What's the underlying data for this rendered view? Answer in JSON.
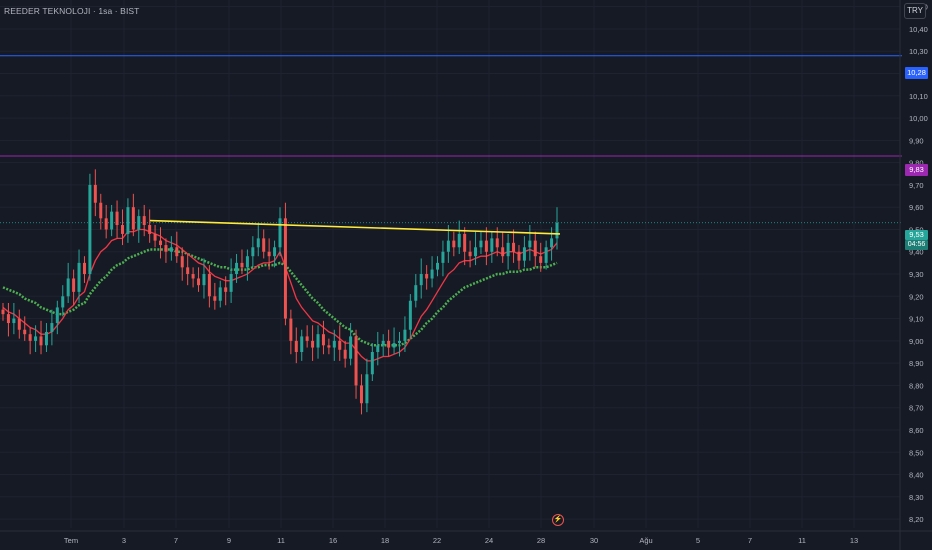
{
  "symbol": {
    "title": "REEDER TEKNOLOJI · 1sa · BIST"
  },
  "toolbar": {
    "currency_label": "TRY"
  },
  "events_icon": "lightning-icon",
  "price_tags": {
    "blue": "10,28",
    "purple": "9,83",
    "current_price": "9,53",
    "countdown": "04:56"
  },
  "colors": {
    "background": "#161a25",
    "grid": "#1f2330",
    "up_candle": "#26a69a",
    "down_candle": "#ef5350",
    "ema_fast": "#f23645",
    "ema_slow": "#4caf50",
    "trendline": "#ffeb3b",
    "horizontal_blue": "#2962ff",
    "horizontal_purple": "#9c27b0",
    "axis_text": "#b2b5be"
  },
  "chart_data": {
    "type": "candlestick",
    "y_axis": {
      "ticks": [
        "10,50",
        "10,40",
        "10,30",
        "10,20",
        "10,10",
        "10,00",
        "9,90",
        "9,80",
        "9,70",
        "9,60",
        "9,50",
        "9,40",
        "9,30",
        "9,20",
        "9,10",
        "9,00",
        "8,90",
        "8,80",
        "8,70",
        "8,60",
        "8,50",
        "8,40",
        "8,30",
        "8,20"
      ],
      "range": [
        8.16,
        10.53
      ]
    },
    "x_axis": {
      "ticks": [
        "Tem",
        "3",
        "7",
        "9",
        "11",
        "16",
        "18",
        "22",
        "24",
        "28",
        "30",
        "Ağu",
        "5",
        "7",
        "11",
        "13"
      ]
    },
    "horizontal_lines": [
      {
        "price": 10.28,
        "color": "#2962ff"
      },
      {
        "price": 9.83,
        "color": "#9c27b0"
      }
    ],
    "current_price": 9.53,
    "trendline": {
      "from_price": 9.54,
      "to_price": 9.48,
      "color": "#ffeb3b"
    },
    "closes": [
      9.12,
      9.08,
      9.1,
      9.05,
      9.03,
      9.0,
      9.02,
      8.98,
      9.04,
      9.08,
      9.15,
      9.2,
      9.28,
      9.22,
      9.35,
      9.3,
      9.7,
      9.62,
      9.55,
      9.5,
      9.58,
      9.52,
      9.48,
      9.6,
      9.5,
      9.56,
      9.52,
      9.48,
      9.45,
      9.43,
      9.4,
      9.42,
      9.38,
      9.33,
      9.3,
      9.28,
      9.25,
      9.3,
      9.2,
      9.18,
      9.24,
      9.22,
      9.3,
      9.35,
      9.33,
      9.38,
      9.42,
      9.46,
      9.4,
      9.38,
      9.42,
      9.55,
      9.1,
      9.0,
      8.95,
      9.02,
      9.0,
      8.97,
      9.03,
      8.98,
      8.97,
      9.0,
      8.96,
      8.92,
      9.02,
      8.8,
      8.72,
      8.85,
      8.95,
      8.98,
      9.0,
      8.97,
      8.99,
      9.0,
      9.05,
      9.18,
      9.25,
      9.3,
      9.28,
      9.32,
      9.35,
      9.4,
      9.45,
      9.42,
      9.48,
      9.4,
      9.38,
      9.42,
      9.45,
      9.4,
      9.46,
      9.42,
      9.38,
      9.44,
      9.4,
      9.36,
      9.42,
      9.45,
      9.38,
      9.35,
      9.42,
      9.46,
      9.53
    ],
    "ema_fast": [
      9.15,
      9.13,
      9.12,
      9.1,
      9.08,
      9.06,
      9.05,
      9.03,
      9.03,
      9.04,
      9.07,
      9.1,
      9.14,
      9.16,
      9.2,
      9.22,
      9.3,
      9.36,
      9.4,
      9.42,
      9.45,
      9.46,
      9.46,
      9.49,
      9.49,
      9.5,
      9.5,
      9.49,
      9.48,
      9.47,
      9.45,
      9.44,
      9.43,
      9.41,
      9.39,
      9.37,
      9.35,
      9.34,
      9.31,
      9.29,
      9.28,
      9.27,
      9.27,
      9.28,
      9.29,
      9.3,
      9.32,
      9.34,
      9.35,
      9.35,
      9.36,
      9.4,
      9.33,
      9.26,
      9.19,
      9.15,
      9.12,
      9.09,
      9.08,
      9.06,
      9.04,
      9.03,
      9.01,
      8.99,
      8.99,
      8.96,
      8.93,
      8.91,
      8.91,
      8.92,
      8.93,
      8.93,
      8.94,
      8.95,
      8.97,
      9.01,
      9.06,
      9.11,
      9.14,
      9.18,
      9.22,
      9.26,
      9.3,
      9.32,
      9.35,
      9.36,
      9.36,
      9.37,
      9.38,
      9.38,
      9.39,
      9.4,
      9.39,
      9.4,
      9.4,
      9.39,
      9.4,
      9.41,
      9.4,
      9.39,
      9.4,
      9.41,
      9.44
    ],
    "ema_slow": [
      9.24,
      9.23,
      9.22,
      9.21,
      9.19,
      9.18,
      9.17,
      9.15,
      9.14,
      9.13,
      9.12,
      9.12,
      9.13,
      9.14,
      9.16,
      9.17,
      9.21,
      9.24,
      9.27,
      9.29,
      9.32,
      9.34,
      9.35,
      9.37,
      9.38,
      9.39,
      9.4,
      9.41,
      9.41,
      9.41,
      9.41,
      9.41,
      9.4,
      9.4,
      9.39,
      9.38,
      9.37,
      9.36,
      9.35,
      9.34,
      9.33,
      9.33,
      9.32,
      9.32,
      9.32,
      9.32,
      9.33,
      9.33,
      9.34,
      9.34,
      9.34,
      9.35,
      9.34,
      9.31,
      9.28,
      9.25,
      9.22,
      9.19,
      9.17,
      9.14,
      9.12,
      9.1,
      9.08,
      9.06,
      9.05,
      9.02,
      9.0,
      8.99,
      8.98,
      8.98,
      8.98,
      8.98,
      8.98,
      8.98,
      8.99,
      9.01,
      9.03,
      9.05,
      9.08,
      9.1,
      9.13,
      9.15,
      9.18,
      9.2,
      9.22,
      9.24,
      9.25,
      9.26,
      9.27,
      9.28,
      9.29,
      9.3,
      9.3,
      9.31,
      9.31,
      9.31,
      9.32,
      9.32,
      9.33,
      9.33,
      9.33,
      9.34,
      9.35
    ]
  }
}
